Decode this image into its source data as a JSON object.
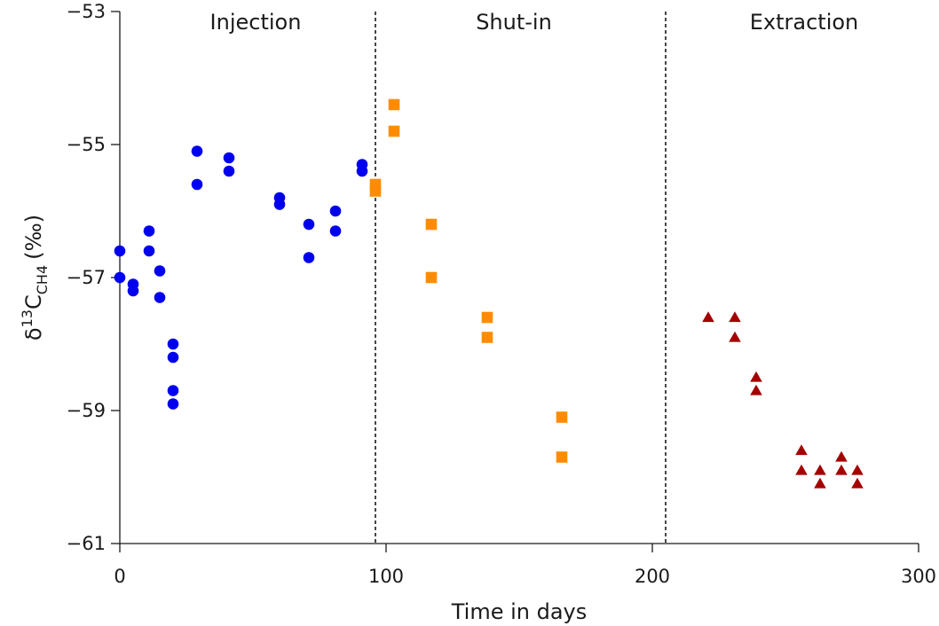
{
  "chart_data": {
    "type": "scatter",
    "title": "",
    "xlabel": "Time in days",
    "ylabel": {
      "delta": "δ",
      "superscript": "13",
      "element": "C",
      "subscript": "CH4",
      "unit": "(‰)"
    },
    "xlim": [
      0,
      300
    ],
    "ylim": [
      -61,
      -53
    ],
    "xticks": [
      0,
      100,
      200,
      300
    ],
    "xtick_labels": [
      "0",
      "100",
      "200",
      "300"
    ],
    "yticks": [
      -53,
      -55,
      -57,
      -59,
      -61
    ],
    "ytick_labels": [
      "−53",
      "−55",
      "−57",
      "−59",
      "−61"
    ],
    "phase_boundaries": [
      96,
      205
    ],
    "phases": [
      {
        "label": "Injection",
        "x_center": 51
      },
      {
        "label": "Shut-in",
        "x_center": 148
      },
      {
        "label": "Extraction",
        "x_center": 257
      }
    ],
    "series": [
      {
        "name": "Injection",
        "marker": "circle",
        "color": "#0000ee",
        "points": [
          [
            0,
            -56.6
          ],
          [
            0,
            -57.0
          ],
          [
            5,
            -57.1
          ],
          [
            5,
            -57.2
          ],
          [
            11,
            -56.3
          ],
          [
            11,
            -56.6
          ],
          [
            15,
            -56.9
          ],
          [
            15,
            -57.3
          ],
          [
            20,
            -58.0
          ],
          [
            20,
            -58.2
          ],
          [
            20,
            -58.7
          ],
          [
            20,
            -58.9
          ],
          [
            29,
            -55.1
          ],
          [
            29,
            -55.6
          ],
          [
            41,
            -55.2
          ],
          [
            41,
            -55.4
          ],
          [
            60,
            -55.8
          ],
          [
            60,
            -55.9
          ],
          [
            71,
            -56.2
          ],
          [
            71,
            -56.7
          ],
          [
            81,
            -56.0
          ],
          [
            81,
            -56.3
          ],
          [
            91,
            -55.3
          ],
          [
            91,
            -55.4
          ]
        ]
      },
      {
        "name": "Shut-in",
        "marker": "square",
        "color": "#ff8c00",
        "points": [
          [
            96,
            -55.6
          ],
          [
            96,
            -55.7
          ],
          [
            103,
            -54.4
          ],
          [
            103,
            -54.8
          ],
          [
            117,
            -56.2
          ],
          [
            117,
            -57.0
          ],
          [
            138,
            -57.6
          ],
          [
            138,
            -57.9
          ],
          [
            166,
            -59.1
          ],
          [
            166,
            -59.7
          ]
        ]
      },
      {
        "name": "Extraction",
        "marker": "triangle",
        "color": "#a50000",
        "points": [
          [
            221,
            -57.6
          ],
          [
            231,
            -57.6
          ],
          [
            231,
            -57.9
          ],
          [
            239,
            -58.5
          ],
          [
            239,
            -58.7
          ],
          [
            256,
            -59.6
          ],
          [
            256,
            -59.9
          ],
          [
            263,
            -59.9
          ],
          [
            263,
            -60.1
          ],
          [
            271,
            -59.7
          ],
          [
            271,
            -59.9
          ],
          [
            277,
            -59.9
          ],
          [
            277,
            -60.1
          ]
        ]
      }
    ]
  }
}
